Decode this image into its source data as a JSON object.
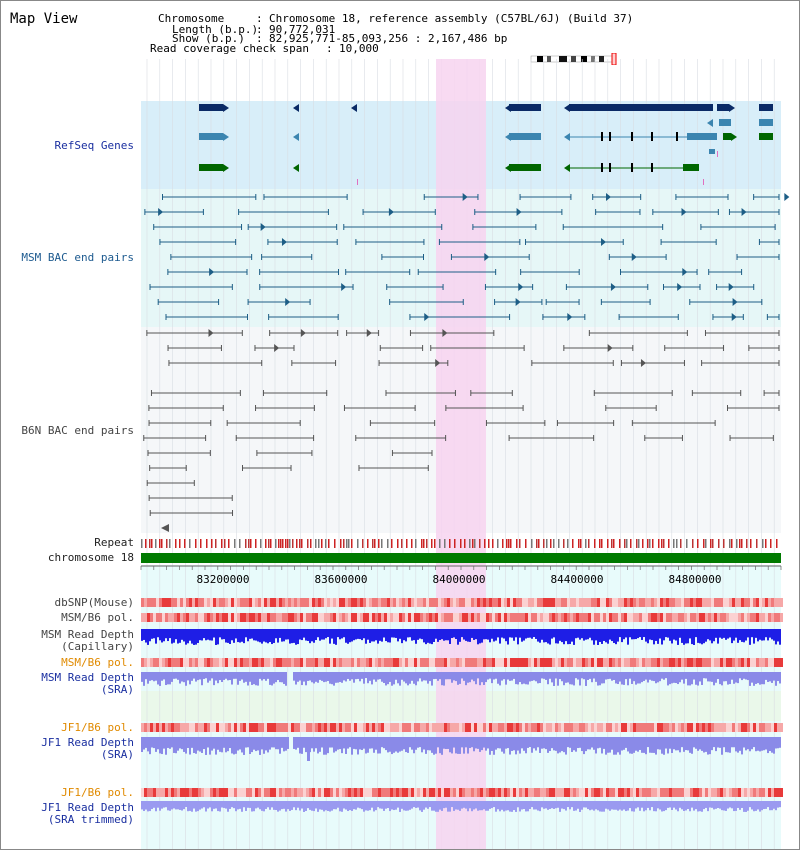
{
  "header": {
    "title": "Map View",
    "info_lines": [
      {
        "key": "Chromosome",
        "value": "Chromosome 18, reference assembly (C57BL/6J) (Build 37)"
      },
      {
        "key": "Length (b.p.)",
        "value": "90,772,031"
      },
      {
        "key": "Show (b.p.)",
        "value": "82,925,771-85,093,256 : 2,167,486 bp"
      },
      {
        "key": "Read coverage check span",
        "value": "10,000"
      }
    ]
  },
  "tracks": {
    "refseq_label": "RefSeq Genes",
    "msm_bac_label": "MSM BAC end pairs",
    "b6n_bac_label": "B6N BAC end pairs",
    "repeat_label": "Repeat",
    "chromosome_label": "chromosome 18",
    "dbsnp_label": "dbSNP(Mouse)",
    "msm_b6_pol_label": "MSM/B6 pol.",
    "msm_read_depth_cap_label_1": "MSM Read Depth",
    "msm_read_depth_cap_label_2": "(Capillary)",
    "msm_b6_pol_2_label": "MSM/B6 pol.",
    "msm_read_depth_sra_label_1": "MSM Read Depth",
    "msm_read_depth_sra_label_2": "(SRA)",
    "jf1_b6_pol_label": "JF1/B6 pol.",
    "jf1_read_depth_label_1": "JF1 Read Depth",
    "jf1_read_depth_label_2": "(SRA)",
    "jf1_b6_pol_2_label": "JF1/B6 pol.",
    "jf1_read_depth_trim_label_1": "JF1 Read Depth",
    "jf1_read_depth_trim_label_2": "(SRA trimmed)"
  },
  "axis": {
    "ticks": [
      "83200000",
      "83600000",
      "84000000",
      "84400000",
      "84800000"
    ]
  },
  "colors": {
    "refseq_bg": "#d8eef9",
    "msm_bac_bg": "#e6f7f7",
    "b6n_bac_bg": "#f5f7f9",
    "highlight": "#f7d4f0",
    "gene_navy": "#0a2a66",
    "gene_steel": "#3b85b0",
    "gene_green": "#006600",
    "msm_bac": "#1d5e86",
    "b6n_bac": "#555555",
    "chrom_bar": "#007a00",
    "depth_msm_cap": "#1e1ee6",
    "depth_sra": "#8a8ae8",
    "pol_red": "#ee4444"
  }
}
